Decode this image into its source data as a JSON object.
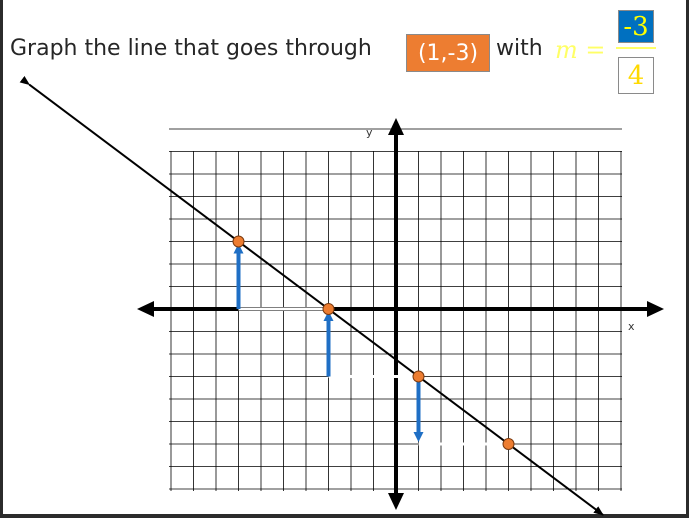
{
  "prompt": {
    "text": "Graph the line that goes through",
    "point": "(1,-3)",
    "with_word": "with",
    "m_symbol": "m",
    "equals": "=",
    "slope_numerator": "-3",
    "slope_denominator": "4"
  },
  "graph": {
    "x_axis_label": "x",
    "y_axis_label": "y",
    "grid_x_range": [
      -10,
      10
    ],
    "grid_y_range": [
      -8,
      8
    ],
    "line": {
      "slope": -0.75,
      "through": [
        1,
        -3
      ]
    },
    "points": [
      [
        -7,
        3
      ],
      [
        -3,
        0
      ],
      [
        1,
        -3
      ],
      [
        5,
        -6
      ]
    ],
    "arrows": [
      {
        "from": [
          -7,
          0
        ],
        "to": [
          -7,
          3
        ]
      },
      {
        "from": [
          -3,
          -3
        ],
        "to": [
          -3,
          0
        ]
      },
      {
        "from": [
          1,
          -3
        ],
        "to": [
          1,
          -6
        ]
      }
    ],
    "colors": {
      "point_fill": "#ed7d31",
      "arrow": "#1f6fc5",
      "line": "#000000",
      "grid": "#000000"
    }
  }
}
